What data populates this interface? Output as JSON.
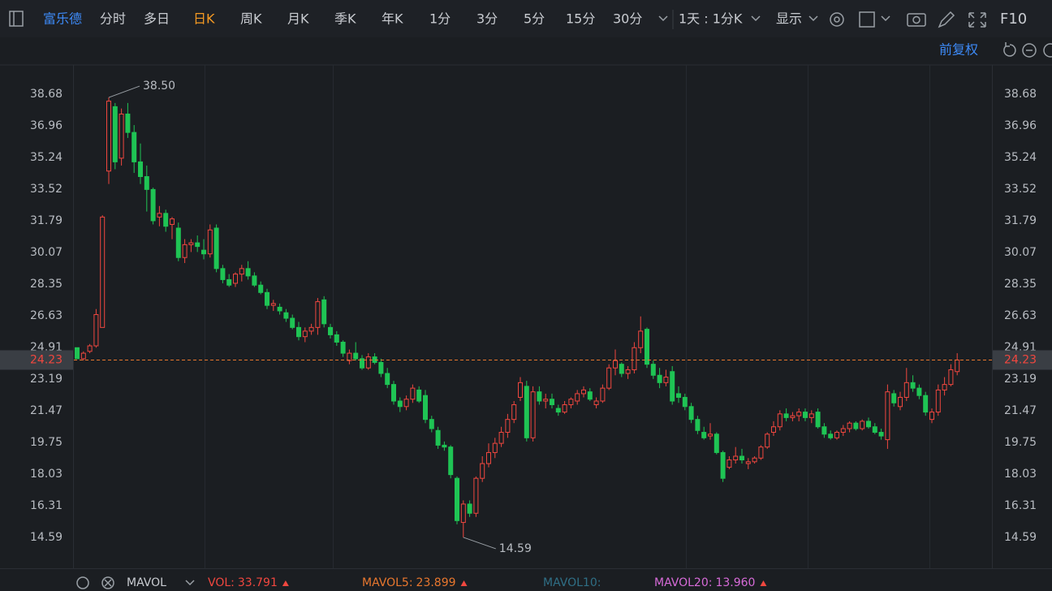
{
  "toolbar": {
    "stock": "富乐德",
    "periods": [
      "分时",
      "多日",
      "日K",
      "周K",
      "月K",
      "季K",
      "年K",
      "1分",
      "3分",
      "5分",
      "15分",
      "30分"
    ],
    "active": "日K",
    "interval": "1天 : 1分K",
    "display": "显示",
    "f10": "F10",
    "adjust": "前复权"
  },
  "chart_data": {
    "type": "candlestick",
    "up_color": "#f0473f",
    "down_color": "#1fc454",
    "ylim": [
      12.91,
      40.18
    ],
    "yticks": [
      38.68,
      36.96,
      35.24,
      33.52,
      31.79,
      30.07,
      28.35,
      26.63,
      24.91,
      23.19,
      21.47,
      19.75,
      18.03,
      16.31,
      14.59
    ],
    "grid": false,
    "last_price": 24.23,
    "last_color": "#e8772e",
    "high_label": {
      "value": 38.5,
      "label": "38.50"
    },
    "low_label": 14.59,
    "ohlc": [
      [
        24.9,
        24.9,
        24.3,
        24.3
      ],
      [
        24.3,
        24.7,
        24.2,
        24.6
      ],
      [
        24.7,
        25.1,
        24.6,
        25.0
      ],
      [
        25.0,
        27.0,
        24.9,
        26.7
      ],
      [
        26.0,
        32.1,
        26.0,
        32.0
      ],
      [
        34.5,
        38.5,
        33.8,
        38.3
      ],
      [
        38.0,
        38.2,
        34.6,
        35.0
      ],
      [
        35.2,
        37.9,
        34.8,
        37.6
      ],
      [
        37.6,
        38.2,
        36.3,
        36.6
      ],
      [
        36.6,
        37.0,
        34.4,
        35.0
      ],
      [
        35.0,
        36.0,
        33.8,
        34.2
      ],
      [
        34.2,
        34.8,
        32.3,
        33.5
      ],
      [
        33.5,
        33.6,
        31.6,
        31.8
      ],
      [
        32.0,
        32.6,
        31.5,
        32.2
      ],
      [
        32.2,
        32.4,
        31.2,
        31.5
      ],
      [
        31.6,
        32.0,
        30.8,
        31.9
      ],
      [
        31.4,
        31.7,
        29.6,
        29.8
      ],
      [
        29.8,
        30.8,
        29.5,
        30.5
      ],
      [
        30.5,
        30.8,
        30.1,
        30.6
      ],
      [
        30.6,
        31.0,
        30.1,
        30.4
      ],
      [
        30.2,
        30.8,
        29.7,
        30.0
      ],
      [
        30.0,
        31.6,
        29.8,
        31.3
      ],
      [
        31.4,
        31.6,
        29.0,
        29.2
      ],
      [
        29.2,
        29.4,
        28.4,
        28.6
      ],
      [
        28.6,
        28.9,
        28.2,
        28.3
      ],
      [
        28.4,
        29.0,
        28.2,
        28.9
      ],
      [
        28.9,
        29.4,
        28.5,
        29.2
      ],
      [
        29.2,
        29.6,
        28.6,
        28.8
      ],
      [
        28.8,
        29.0,
        28.2,
        28.3
      ],
      [
        28.3,
        28.5,
        27.8,
        27.9
      ],
      [
        27.9,
        28.1,
        27.0,
        27.2
      ],
      [
        27.2,
        27.5,
        26.9,
        27.3
      ],
      [
        27.1,
        27.3,
        26.7,
        26.9
      ],
      [
        26.8,
        27.0,
        26.3,
        26.5
      ],
      [
        26.5,
        26.7,
        25.9,
        26.0
      ],
      [
        26.0,
        26.3,
        25.3,
        25.5
      ],
      [
        25.5,
        26.0,
        25.2,
        25.8
      ],
      [
        25.8,
        26.2,
        25.6,
        26.0
      ],
      [
        26.0,
        27.6,
        25.6,
        27.4
      ],
      [
        27.5,
        27.7,
        26.0,
        26.2
      ],
      [
        26.0,
        26.2,
        25.4,
        25.6
      ],
      [
        25.6,
        25.8,
        25.0,
        25.2
      ],
      [
        25.2,
        25.3,
        24.4,
        24.6
      ],
      [
        24.2,
        24.8,
        24.0,
        24.6
      ],
      [
        24.6,
        25.2,
        24.2,
        24.3
      ],
      [
        24.3,
        24.5,
        23.7,
        23.8
      ],
      [
        23.8,
        24.6,
        23.7,
        24.4
      ],
      [
        24.4,
        24.6,
        24.0,
        24.1
      ],
      [
        24.1,
        24.3,
        23.3,
        23.5
      ],
      [
        23.5,
        23.8,
        22.7,
        22.9
      ],
      [
        22.9,
        23.1,
        21.8,
        22.0
      ],
      [
        22.0,
        22.2,
        21.4,
        21.7
      ],
      [
        21.7,
        22.3,
        21.5,
        22.1
      ],
      [
        22.1,
        22.9,
        21.9,
        22.7
      ],
      [
        22.6,
        22.8,
        21.9,
        22.0
      ],
      [
        22.3,
        22.6,
        20.8,
        21.0
      ],
      [
        21.0,
        21.2,
        20.3,
        20.5
      ],
      [
        20.4,
        20.6,
        19.4,
        19.6
      ],
      [
        19.6,
        19.8,
        19.3,
        19.5
      ],
      [
        19.5,
        19.6,
        17.8,
        18.0
      ],
      [
        17.8,
        17.9,
        15.3,
        15.5
      ],
      [
        15.4,
        16.6,
        14.59,
        16.4
      ],
      [
        16.4,
        16.6,
        15.7,
        15.9
      ],
      [
        15.9,
        17.9,
        15.7,
        17.8
      ],
      [
        17.8,
        19.0,
        17.6,
        18.6
      ],
      [
        18.6,
        19.7,
        18.4,
        19.2
      ],
      [
        19.2,
        20.0,
        18.9,
        19.7
      ],
      [
        19.7,
        20.6,
        19.5,
        20.3
      ],
      [
        20.3,
        21.3,
        20.0,
        21.0
      ],
      [
        21.0,
        22.0,
        20.8,
        21.8
      ],
      [
        22.2,
        23.3,
        22.0,
        23.0
      ],
      [
        22.8,
        23.1,
        19.8,
        20.0
      ],
      [
        20.0,
        22.8,
        19.8,
        22.5
      ],
      [
        22.5,
        22.8,
        21.8,
        22.0
      ],
      [
        22.0,
        22.4,
        21.6,
        22.1
      ],
      [
        22.1,
        22.4,
        21.6,
        21.8
      ],
      [
        21.6,
        21.8,
        21.2,
        21.4
      ],
      [
        21.4,
        22.0,
        21.3,
        21.8
      ],
      [
        21.8,
        22.2,
        21.6,
        22.1
      ],
      [
        22.0,
        22.6,
        21.8,
        22.4
      ],
      [
        22.4,
        22.8,
        22.2,
        22.6
      ],
      [
        22.5,
        22.7,
        22.0,
        22.1
      ],
      [
        21.8,
        22.2,
        21.6,
        22.0
      ],
      [
        22.0,
        22.9,
        21.9,
        22.7
      ],
      [
        22.7,
        24.0,
        22.6,
        23.8
      ],
      [
        23.8,
        24.8,
        23.4,
        24.2
      ],
      [
        24.0,
        24.1,
        23.3,
        23.5
      ],
      [
        23.5,
        23.9,
        23.2,
        23.7
      ],
      [
        23.7,
        25.2,
        23.5,
        24.9
      ],
      [
        24.9,
        26.6,
        24.6,
        25.8
      ],
      [
        25.9,
        26.0,
        23.8,
        24.0
      ],
      [
        24.0,
        24.2,
        23.2,
        23.4
      ],
      [
        23.4,
        23.8,
        22.7,
        23.0
      ],
      [
        23.0,
        23.7,
        22.8,
        23.3
      ],
      [
        23.6,
        23.9,
        21.8,
        22.0
      ],
      [
        22.4,
        22.8,
        21.9,
        22.2
      ],
      [
        22.2,
        22.4,
        21.5,
        21.7
      ],
      [
        21.7,
        21.9,
        20.8,
        21.0
      ],
      [
        21.0,
        21.2,
        20.2,
        20.4
      ],
      [
        20.3,
        20.6,
        19.9,
        20.0
      ],
      [
        20.1,
        20.8,
        19.9,
        20.2
      ],
      [
        20.2,
        20.3,
        19.1,
        19.2
      ],
      [
        19.2,
        19.3,
        17.6,
        17.8
      ],
      [
        18.4,
        19.0,
        18.3,
        18.8
      ],
      [
        18.8,
        19.5,
        18.6,
        19.0
      ],
      [
        19.0,
        19.4,
        18.6,
        18.8
      ],
      [
        18.6,
        18.9,
        18.3,
        18.7
      ],
      [
        18.7,
        19.0,
        18.6,
        18.9
      ],
      [
        18.9,
        19.6,
        18.8,
        19.5
      ],
      [
        19.5,
        20.3,
        19.4,
        20.2
      ],
      [
        20.3,
        20.9,
        20.1,
        20.6
      ],
      [
        20.6,
        21.5,
        20.4,
        21.3
      ],
      [
        21.3,
        21.6,
        20.9,
        21.1
      ],
      [
        21.1,
        21.4,
        20.9,
        21.2
      ],
      [
        21.2,
        21.6,
        20.9,
        21.4
      ],
      [
        21.4,
        21.6,
        20.9,
        21.1
      ],
      [
        21.1,
        21.5,
        20.8,
        21.3
      ],
      [
        21.4,
        21.6,
        20.5,
        20.6
      ],
      [
        20.6,
        20.8,
        20.0,
        20.2
      ],
      [
        20.2,
        20.4,
        19.9,
        20.0
      ],
      [
        20.0,
        20.4,
        19.9,
        20.3
      ],
      [
        20.3,
        20.7,
        20.1,
        20.5
      ],
      [
        20.5,
        20.9,
        20.3,
        20.8
      ],
      [
        20.8,
        20.9,
        20.4,
        20.5
      ],
      [
        20.5,
        21.0,
        20.4,
        20.9
      ],
      [
        20.9,
        21.1,
        20.5,
        20.6
      ],
      [
        20.6,
        20.8,
        20.2,
        20.3
      ],
      [
        20.3,
        20.5,
        19.9,
        20.1
      ],
      [
        19.9,
        22.9,
        19.4,
        22.5
      ],
      [
        22.4,
        22.6,
        21.7,
        21.9
      ],
      [
        21.7,
        22.5,
        21.5,
        22.2
      ],
      [
        22.2,
        23.8,
        22.0,
        23.0
      ],
      [
        23.0,
        23.4,
        22.5,
        22.7
      ],
      [
        22.7,
        22.9,
        22.1,
        22.3
      ],
      [
        22.3,
        22.5,
        21.2,
        21.4
      ],
      [
        21.0,
        21.6,
        20.8,
        21.4
      ],
      [
        21.4,
        22.9,
        21.2,
        22.6
      ],
      [
        22.6,
        23.3,
        22.3,
        22.9
      ],
      [
        22.9,
        24.0,
        22.8,
        23.7
      ],
      [
        23.6,
        24.6,
        23.4,
        24.23
      ]
    ]
  },
  "indicator": {
    "name": "MAVOL",
    "items": [
      {
        "label": "VOL:",
        "value": "33.791",
        "color": "#f0473f"
      },
      {
        "label": "MAVOL5:",
        "value": "23.899",
        "color": "#e8772e"
      },
      {
        "label": "MAVOL10:",
        "color": "#2f6f86"
      },
      {
        "label": "MAVOL20:",
        "value": "13.960",
        "color": "#d76bd8"
      }
    ]
  }
}
